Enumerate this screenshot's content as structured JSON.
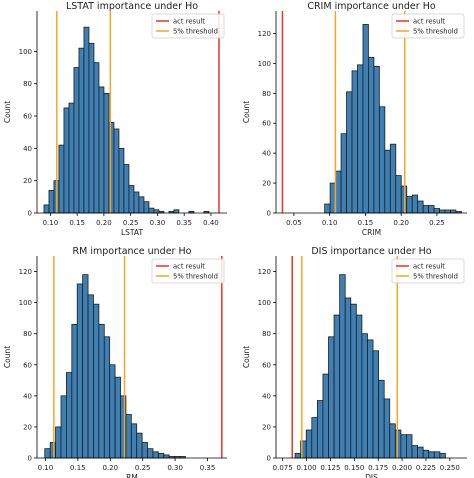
{
  "chart_data": [
    {
      "type": "bar",
      "title": "LSTAT importance under Ho",
      "xlabel": "LSTAT",
      "ylabel": "Count",
      "xlim": [
        0.075,
        0.43
      ],
      "ylim": [
        0,
        125
      ],
      "xticks": [
        0.1,
        0.15,
        0.2,
        0.25,
        0.3,
        0.35,
        0.4
      ],
      "xtick_labels": [
        "0.10",
        "0.15",
        "0.20",
        "0.25",
        "0.30",
        "0.35",
        "0.40"
      ],
      "yticks": [
        0,
        20,
        40,
        60,
        80,
        100
      ],
      "ytick_labels": [
        "0",
        "20",
        "40",
        "60",
        "80",
        "100"
      ],
      "bin_start": 0.088,
      "bin_width": 0.00934,
      "values": [
        5,
        14,
        20,
        42,
        65,
        68,
        90,
        102,
        115,
        105,
        93,
        78,
        74,
        56,
        52,
        40,
        30,
        17,
        13,
        10,
        7,
        3,
        2,
        1,
        0,
        1,
        2,
        0,
        0,
        1,
        0,
        0,
        1
      ],
      "act_result": 0.415,
      "threshold_lines": [
        0.112,
        0.212
      ],
      "legend": {
        "position": "top-right",
        "entries": [
          {
            "label": "act result",
            "color": "#e8342a"
          },
          {
            "label": "5% threshold",
            "color": "#f5a623"
          }
        ]
      }
    },
    {
      "type": "bar",
      "title": "CRIM importance under Ho",
      "xlabel": "CRIM",
      "ylabel": "Count",
      "xlim": [
        0.025,
        0.292
      ],
      "ylim": [
        0,
        135
      ],
      "xticks": [
        0.05,
        0.1,
        0.15,
        0.2,
        0.25
      ],
      "xtick_labels": [
        "0.05",
        "0.10",
        "0.15",
        "0.20",
        "0.25"
      ],
      "yticks": [
        0,
        20,
        40,
        60,
        80,
        100,
        120
      ],
      "ytick_labels": [
        "0",
        "20",
        "40",
        "60",
        "80",
        "100",
        "120"
      ],
      "bin_start": 0.093,
      "bin_width": 0.00765,
      "values": [
        6,
        20,
        28,
        53,
        81,
        95,
        99,
        126,
        104,
        98,
        71,
        42,
        46,
        25,
        18,
        11,
        12,
        8,
        5,
        5,
        3,
        2,
        2,
        2,
        1
      ],
      "act_result": 0.034,
      "threshold_lines": [
        0.108,
        0.205
      ],
      "legend": {
        "position": "top-right",
        "entries": [
          {
            "label": "act result",
            "color": "#e8342a"
          },
          {
            "label": "5% threshold",
            "color": "#f5a623"
          }
        ]
      }
    },
    {
      "type": "bar",
      "title": "RM importance under Ho",
      "xlabel": "RM",
      "ylabel": "Count",
      "xlim": [
        0.087,
        0.38
      ],
      "ylim": [
        0,
        130
      ],
      "xticks": [
        0.1,
        0.15,
        0.2,
        0.25,
        0.3,
        0.35
      ],
      "xtick_labels": [
        "0.10",
        "0.15",
        "0.20",
        "0.25",
        "0.30",
        "0.35"
      ],
      "yticks": [
        0,
        20,
        40,
        60,
        80,
        100,
        120
      ],
      "ytick_labels": [
        "0",
        "20",
        "40",
        "60",
        "80",
        "100",
        "120"
      ],
      "bin_start": 0.099,
      "bin_width": 0.00834,
      "values": [
        6,
        10,
        20,
        40,
        55,
        86,
        112,
        118,
        105,
        99,
        86,
        78,
        60,
        52,
        40,
        28,
        22,
        16,
        10,
        6,
        4,
        3,
        2,
        1,
        1,
        1
      ],
      "act_result": 0.372,
      "threshold_lines": [
        0.113,
        0.222
      ],
      "legend": {
        "position": "top-right",
        "entries": [
          {
            "label": "act result",
            "color": "#e8342a"
          },
          {
            "label": "5% threshold",
            "color": "#f5a623"
          }
        ]
      }
    },
    {
      "type": "bar",
      "title": "DIS importance under Ho",
      "xlabel": "DIS",
      "ylabel": "Count",
      "xlim": [
        0.068,
        0.268
      ],
      "ylim": [
        0,
        130
      ],
      "xticks": [
        0.075,
        0.1,
        0.125,
        0.15,
        0.175,
        0.2,
        0.225,
        0.25
      ],
      "xtick_labels": [
        "0.075",
        "0.100",
        "0.125",
        "0.150",
        "0.175",
        "0.200",
        "0.225",
        "0.250"
      ],
      "yticks": [
        0,
        20,
        40,
        60,
        80,
        100,
        120
      ],
      "ytick_labels": [
        "0",
        "20",
        "40",
        "60",
        "80",
        "100",
        "120"
      ],
      "bin_start": 0.088,
      "bin_width": 0.00583,
      "values": [
        3,
        11,
        18,
        26,
        37,
        54,
        78,
        92,
        118,
        103,
        99,
        92,
        80,
        76,
        69,
        50,
        38,
        22,
        18,
        15,
        15,
        8,
        7,
        5,
        4,
        4,
        3
      ],
      "act_result": 0.085,
      "threshold_lines": [
        0.095,
        0.195
      ],
      "legend": {
        "position": "top-right",
        "entries": [
          {
            "label": "act result",
            "color": "#e8342a"
          },
          {
            "label": "5% threshold",
            "color": "#f5a623"
          }
        ]
      }
    }
  ],
  "colors": {
    "bar_fill": "#3f80b4",
    "bar_edge": "#1d1d1d",
    "act_result": "#e8342a",
    "threshold": "#f5a623"
  }
}
